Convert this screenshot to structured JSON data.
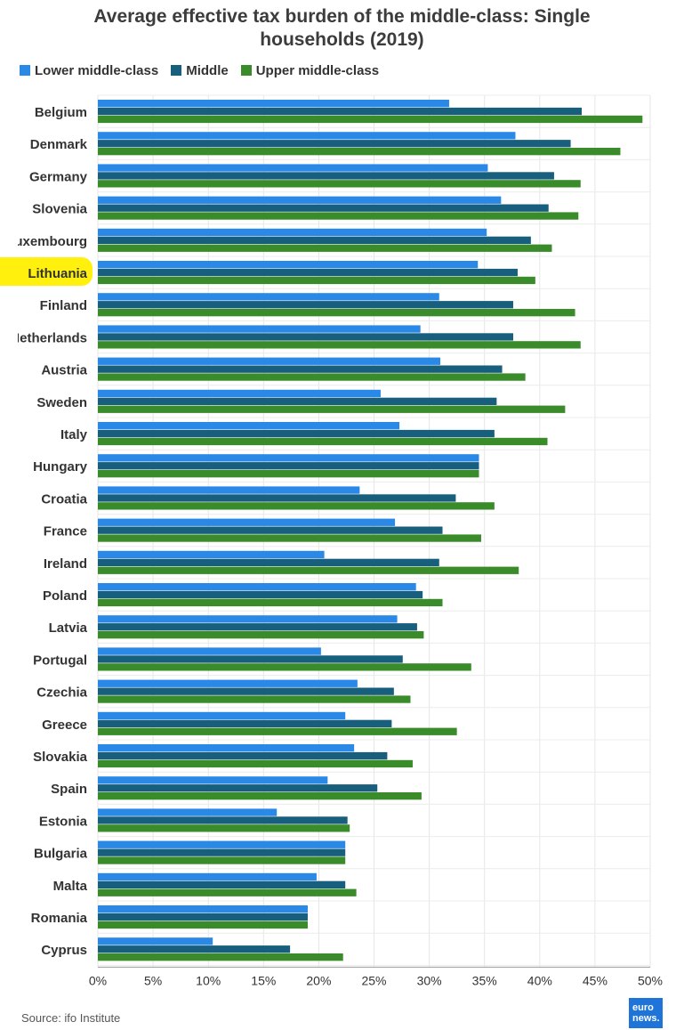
{
  "chart_data": {
    "type": "bar",
    "orientation": "horizontal",
    "title": "Average effective tax burden of the middle-class: Single households (2019)",
    "title_lines": [
      "Average effective tax burden of the middle-class: Single",
      "households (2019)"
    ],
    "xlim": [
      0,
      50
    ],
    "x_ticks": [
      "0%",
      "5%",
      "10%",
      "15%",
      "20%",
      "25%",
      "30%",
      "35%",
      "40%",
      "45%",
      "50%"
    ],
    "grid": true,
    "legend_position": "top-left",
    "highlighted_category": "Lithuania",
    "categories": [
      "Belgium",
      "Denmark",
      "Germany",
      "Slovenia",
      "Luxembourg",
      "Lithuania",
      "Finland",
      "Netherlands",
      "Austria",
      "Sweden",
      "Italy",
      "Hungary",
      "Croatia",
      "France",
      "Ireland",
      "Poland",
      "Latvia",
      "Portugal",
      "Czechia",
      "Greece",
      "Slovakia",
      "Spain",
      "Estonia",
      "Bulgaria",
      "Malta",
      "Romania",
      "Cyprus"
    ],
    "series": [
      {
        "name": "Lower middle-class",
        "color": "#2a88e6",
        "values": [
          31.8,
          37.8,
          35.3,
          36.5,
          35.2,
          34.4,
          30.9,
          29.2,
          31.0,
          25.6,
          27.3,
          34.5,
          23.7,
          26.9,
          20.5,
          28.8,
          27.1,
          20.2,
          23.5,
          22.4,
          23.2,
          20.8,
          16.2,
          22.4,
          19.8,
          19.0,
          10.4
        ]
      },
      {
        "name": "Middle",
        "color": "#185f7e",
        "values": [
          43.8,
          42.8,
          41.3,
          40.8,
          39.2,
          38.0,
          37.6,
          37.6,
          36.6,
          36.1,
          35.9,
          34.5,
          32.4,
          31.2,
          30.9,
          29.4,
          28.9,
          27.6,
          26.8,
          26.6,
          26.2,
          25.3,
          22.6,
          22.4,
          22.4,
          19.0,
          17.4
        ]
      },
      {
        "name": "Upper middle-class",
        "color": "#3a8c2a",
        "values": [
          49.3,
          47.3,
          43.7,
          43.5,
          41.1,
          39.6,
          43.2,
          43.7,
          38.7,
          42.3,
          40.7,
          34.5,
          35.9,
          34.7,
          38.1,
          31.2,
          29.5,
          33.8,
          28.3,
          32.5,
          28.5,
          29.3,
          22.8,
          22.4,
          23.4,
          19.0,
          22.2
        ]
      }
    ]
  },
  "footer": {
    "source": "Source: ifo Institute",
    "logo_line1": "euro",
    "logo_line2": "news."
  }
}
